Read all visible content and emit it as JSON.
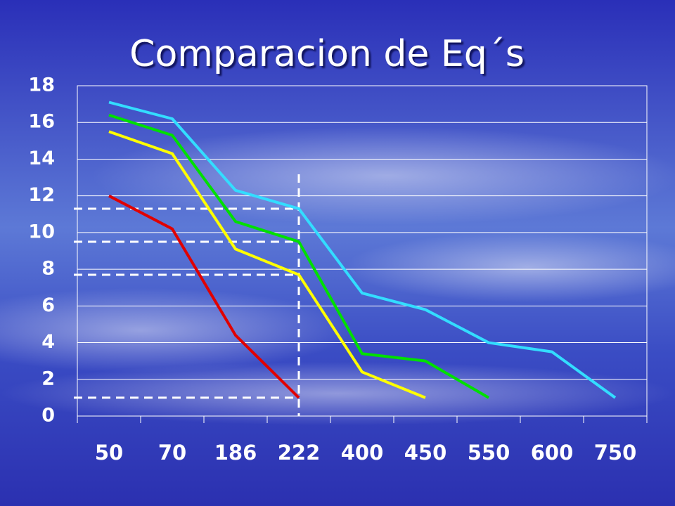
{
  "chart_data": {
    "type": "line",
    "title": "Comparacion de Eq´s",
    "categories": [
      "50",
      "70",
      "186",
      "222",
      "400",
      "450",
      "550",
      "600",
      "750"
    ],
    "series": [
      {
        "color": "#e00000",
        "values": [
          12,
          10.2,
          4.4,
          1,
          null,
          null,
          null,
          null,
          null
        ]
      },
      {
        "color": "#ffff00",
        "values": [
          15.5,
          14.3,
          9.1,
          7.7,
          2.4,
          1,
          null,
          null,
          null
        ]
      },
      {
        "color": "#00e000",
        "values": [
          16.4,
          15.3,
          10.6,
          9.5,
          3.4,
          3.0,
          1,
          null,
          null
        ]
      },
      {
        "color": "#33ddff",
        "values": [
          17.1,
          16.2,
          12.3,
          11.3,
          6.7,
          5.8,
          4.0,
          3.5,
          1
        ]
      }
    ],
    "ylim": [
      0,
      18
    ],
    "yticks": [
      0,
      2,
      4,
      6,
      8,
      10,
      12,
      14,
      16,
      18
    ],
    "grid": true
  }
}
